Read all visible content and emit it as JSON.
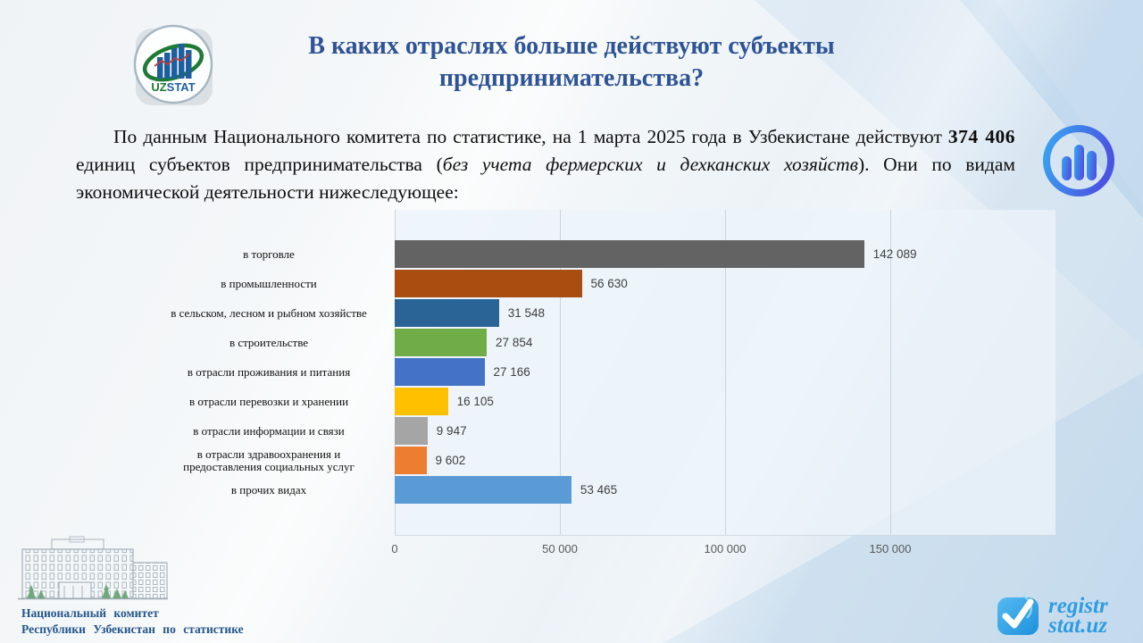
{
  "title": {
    "line1": "В каких отраслях больше действуют субъекты",
    "line2": "предпринимательства?"
  },
  "uzstat_logo": {
    "uz": "UZ",
    "stat": "STAT"
  },
  "intro": {
    "seg1": "По данным Национального комитета по статистике, на 1 марта 2025 года в Узбекистане действуют ",
    "bold_value": "374 406",
    "seg2": " единиц субъектов предпринимательства (",
    "italic": "без учета фермерских и дехканских хозяйств",
    "seg3": "). Они по видам экономической деятельности нижеследующее:"
  },
  "chart_data": {
    "type": "bar",
    "orientation": "horizontal",
    "title": "",
    "xlabel": "",
    "ylabel": "",
    "grid": true,
    "legend": false,
    "xlim": [
      0,
      200000
    ],
    "ticks": [
      0,
      50000,
      100000,
      150000
    ],
    "tick_labels": [
      "0",
      "50 000",
      "100 000",
      "150 000"
    ],
    "categories": [
      "в торговле",
      "в промышленности",
      "в сельском, лесном и рыбном хозяйстве",
      "в строительстве",
      "в отрасли проживания  и питания",
      "в отрасли перевозки и хранении",
      "в отрасли информации  и связи",
      "в отрасли здравоохранения и\nпредоставления социальных услуг",
      "в прочих видах"
    ],
    "values": [
      142089,
      56630,
      31548,
      27854,
      27166,
      16105,
      9947,
      9602,
      53465
    ],
    "value_labels": [
      "142 089",
      "56 630",
      "31 548",
      "27 854",
      "27 166",
      "16 105",
      "9 947",
      "9 602",
      "53 465"
    ],
    "colors": [
      "#636363",
      "#A94D10",
      "#2A6396",
      "#70AD47",
      "#4472C4",
      "#FFC000",
      "#A5A5A5",
      "#ED7D31",
      "#5B9BD5"
    ]
  },
  "footer": {
    "org_line1": "Национальный  комитет",
    "org_line2": "Республики  Узбекистан  по  статистике",
    "logo_line1": "registr",
    "logo_line2": "stat.uz"
  },
  "brand_colors": {
    "title_blue": "#2F5496",
    "registr_blue": "#2F9CE2",
    "icon_gradient_start": "#38A6F0",
    "icon_gradient_end": "#4A55E2"
  }
}
